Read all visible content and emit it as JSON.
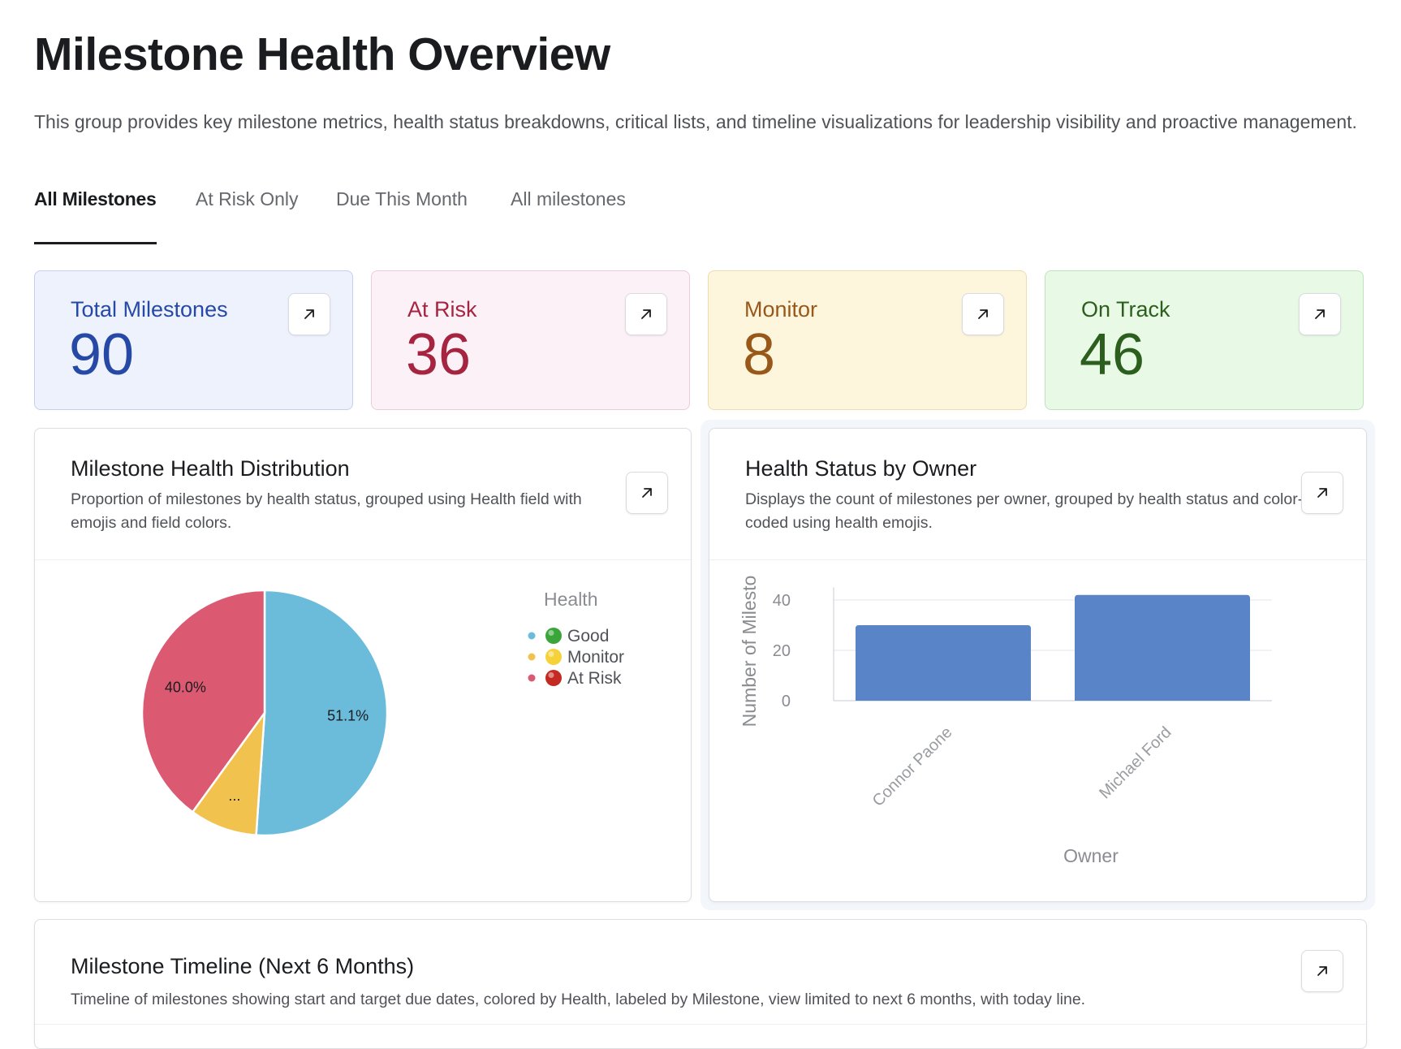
{
  "header": {
    "title": "Milestone Health Overview",
    "subtitle": "This group provides key milestone metrics, health status breakdowns, critical lists, and timeline visualizations for leadership visibility and proactive management."
  },
  "tabs": [
    {
      "label": "All Milestones",
      "active": true
    },
    {
      "label": "At Risk Only",
      "active": false
    },
    {
      "label": "Due This Month",
      "active": false
    },
    {
      "label": "All milestones",
      "active": false
    }
  ],
  "kpis": {
    "total": {
      "label": "Total Milestones",
      "value": "90"
    },
    "at_risk": {
      "label": "At Risk",
      "value": "36"
    },
    "monitor": {
      "label": "Monitor",
      "value": "8"
    },
    "on_track": {
      "label": "On Track",
      "value": "46"
    }
  },
  "cards": {
    "pie": {
      "title": "Milestone Health Distribution",
      "description": "Proportion of milestones by health status, grouped using Health field with emojis and field colors."
    },
    "bar": {
      "title": "Health Status by Owner",
      "description": "Displays the count of milestones per owner, grouped by health status and color-coded using health emojis."
    },
    "timeline": {
      "title": "Milestone Timeline (Next 6 Months)",
      "description": "Timeline of milestones showing start and target due dates, colored by Health, labeled by Milestone, view limited to next 6 months, with today line."
    }
  },
  "colors": {
    "good": "#6bbcdb",
    "monitor": "#f2c24f",
    "at_risk": "#db5a72",
    "bar": "#5a84c8",
    "emoji_good": "#3aa63a",
    "emoji_monitor": "#f5d23a",
    "emoji_risk": "#c42a22"
  },
  "chart_data": [
    {
      "type": "pie",
      "title": "Milestone Health Distribution",
      "legend_title": "Health",
      "legend_position": "right",
      "slices": [
        {
          "label": "Good",
          "value": 51.1,
          "display": "51.1%",
          "color": "#6bbcdb"
        },
        {
          "label": "Monitor",
          "value": 8.9,
          "display": "...",
          "color": "#f2c24f"
        },
        {
          "label": "At Risk",
          "value": 40.0,
          "display": "40.0%",
          "color": "#db5a72"
        }
      ]
    },
    {
      "type": "bar",
      "title": "Health Status by Owner",
      "categories": [
        "Connor Paone",
        "Michael Ford"
      ],
      "values": [
        30,
        42
      ],
      "xlabel": "Owner",
      "ylabel": "Number of Milesto",
      "ylim": [
        0,
        45
      ],
      "yticks": [
        0,
        20,
        40
      ],
      "grid": true,
      "color": "#5a84c8"
    }
  ]
}
